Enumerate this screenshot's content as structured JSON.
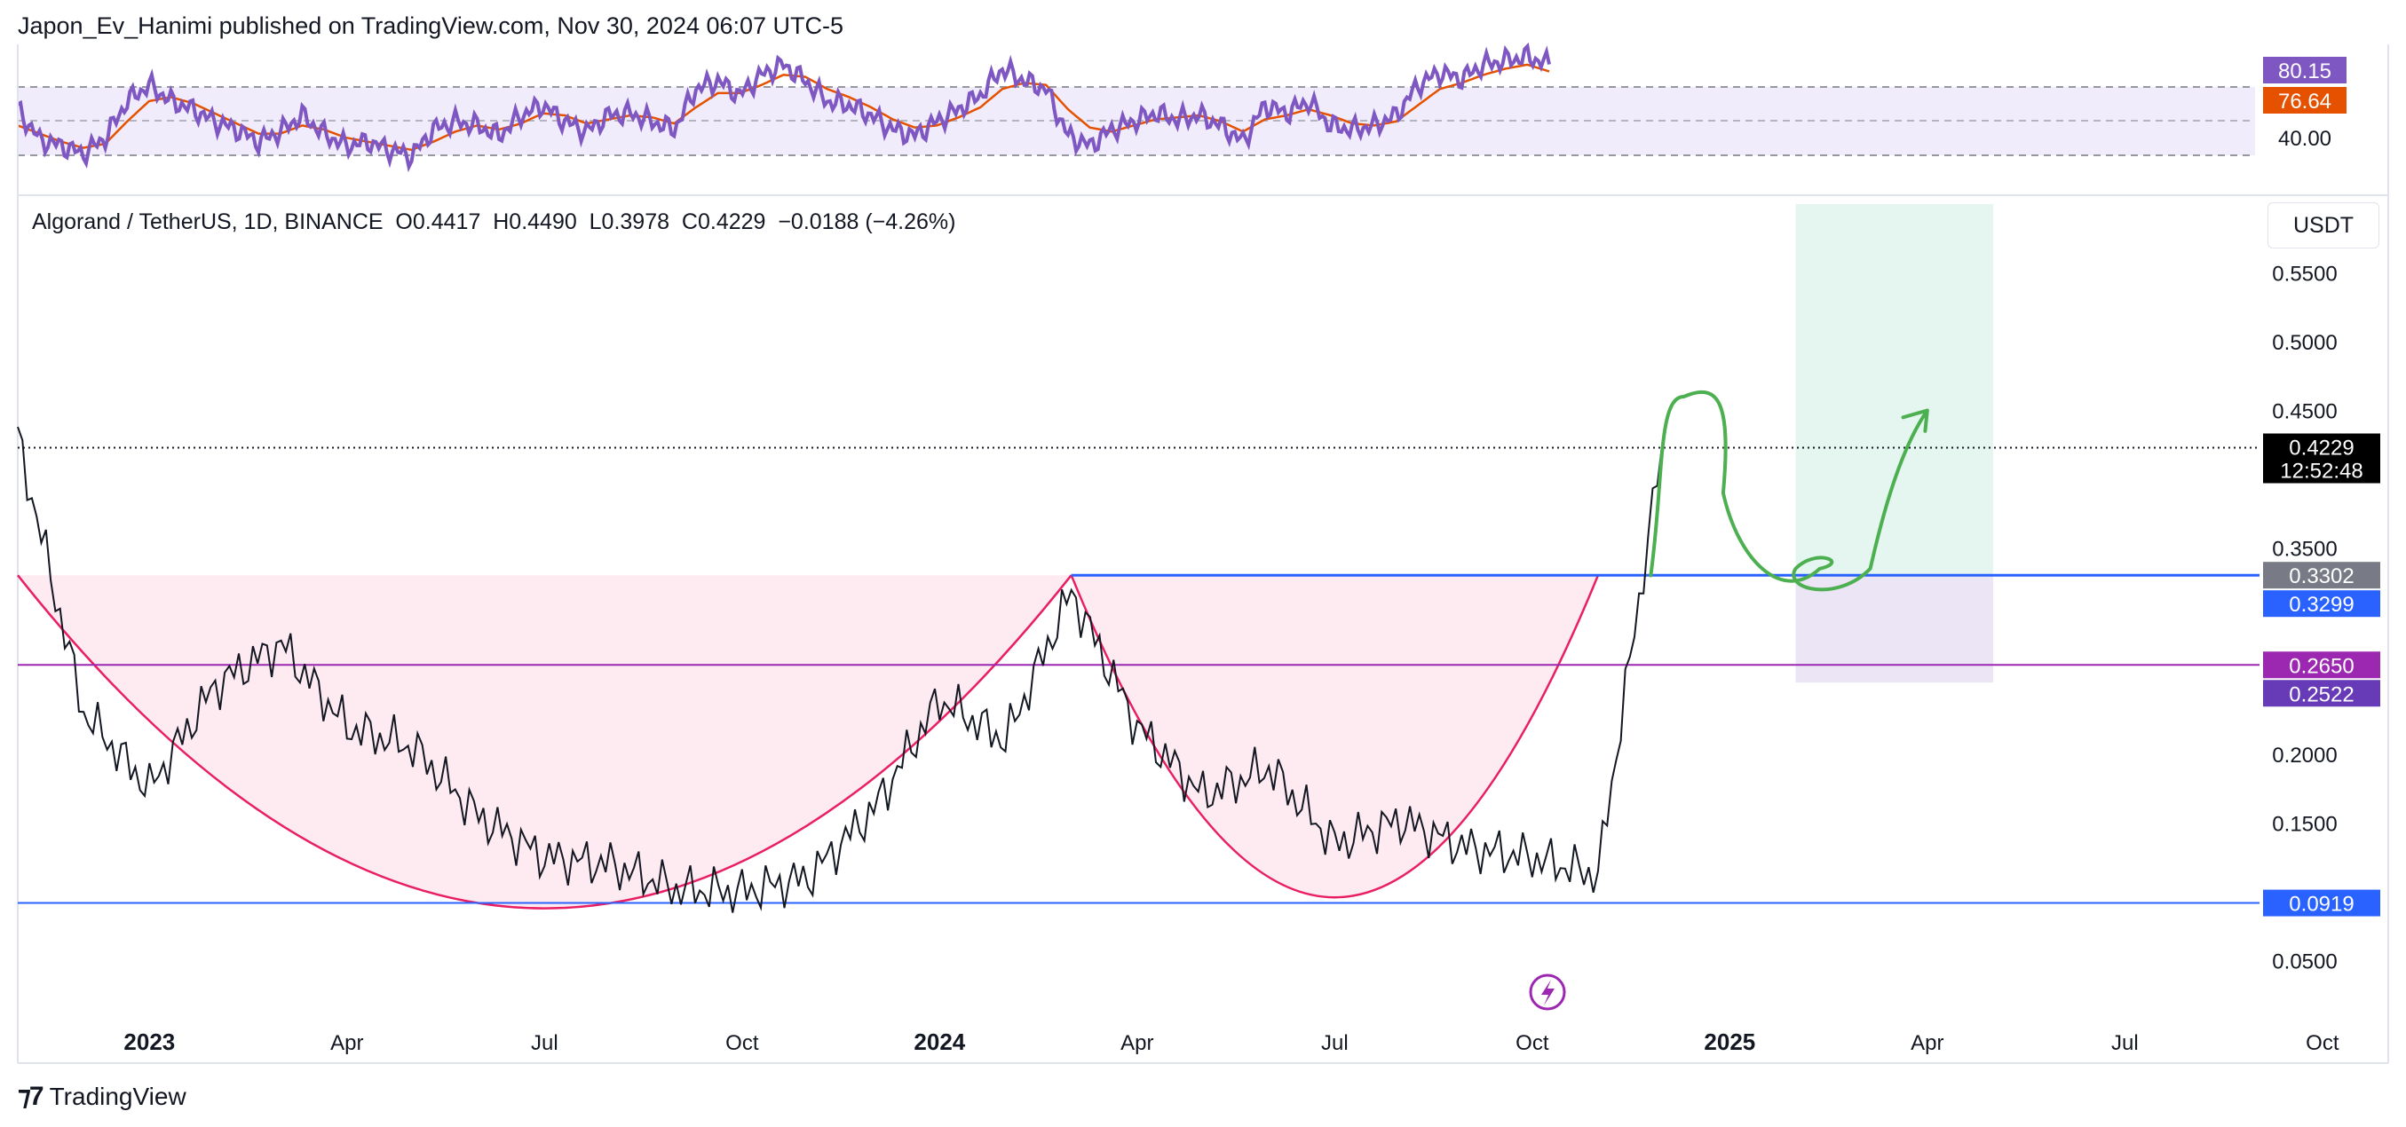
{
  "publisher": "Japon_Ev_Hanimi published on TradingView.com, Nov 30, 2024 06:07 UTC-5",
  "symbol_info": "Algorand / TetherUS, 1D, BINANCE  O0.4417  H0.4490  L0.3978  C0.4229  −0.0188 (−4.26%)",
  "currency_button": "USDT",
  "footer_brand": "TradingView",
  "chart_data": [
    {
      "type": "line",
      "title": "",
      "series": [
        {
          "name": "",
          "color": "#7e57c2",
          "values": [
            58,
            43,
            40,
            36,
            44,
            62,
            70,
            62,
            58,
            52,
            48,
            42,
            47,
            55,
            46,
            40,
            42,
            38,
            35,
            48,
            52,
            50,
            45,
            55,
            60,
            52,
            47,
            55,
            56,
            52,
            48,
            68,
            72,
            65,
            75,
            80,
            72,
            62,
            60,
            55,
            48,
            45,
            52,
            58,
            65,
            78,
            72,
            68,
            45,
            40,
            48,
            52,
            56,
            53,
            55,
            50,
            42,
            60,
            56,
            62,
            50,
            48,
            50,
            55,
            70,
            76,
            73,
            80,
            82,
            84,
            80.15
          ]
        },
        {
          "name": "",
          "color": "#e65100",
          "values": [
            50,
            46,
            42,
            39,
            41,
            52,
            62,
            64,
            61,
            56,
            51,
            46,
            46,
            50,
            48,
            44,
            42,
            40,
            38,
            42,
            47,
            50,
            48,
            51,
            56,
            55,
            51,
            53,
            55,
            54,
            51,
            59,
            66,
            66,
            70,
            75,
            74,
            68,
            64,
            59,
            53,
            49,
            50,
            54,
            59,
            68,
            71,
            70,
            58,
            49,
            47,
            50,
            53,
            54,
            55,
            52,
            47,
            53,
            55,
            58,
            55,
            51,
            50,
            52,
            60,
            68,
            71,
            75,
            78,
            80,
            76.64
          ]
        }
      ],
      "levels": [
        80,
        60,
        40
      ],
      "tick_labels": [
        "40.00"
      ],
      "last_values": {
        "rsi": "80.15",
        "ma": "76.64"
      },
      "ylim": [
        20,
        90
      ]
    },
    {
      "type": "line",
      "title": "",
      "x": [
        "2022-11",
        "2022-12",
        "2023-01",
        "2023-02",
        "2023-03",
        "2023-04",
        "2023-05",
        "2023-06",
        "2023-07",
        "2023-08",
        "2023-09",
        "2023-10",
        "2023-11",
        "2023-12",
        "2024-01",
        "2024-02",
        "2024-03",
        "2024-04",
        "2024-05",
        "2024-06",
        "2024-07",
        "2024-08",
        "2024-09",
        "2024-10",
        "2024-11",
        "2024-11-30"
      ],
      "series": [
        {
          "name": "",
          "color": "#131722",
          "values": [
            0.43,
            0.23,
            0.175,
            0.25,
            0.28,
            0.22,
            0.205,
            0.155,
            0.125,
            0.12,
            0.102,
            0.1,
            0.11,
            0.16,
            0.24,
            0.21,
            0.318,
            0.22,
            0.17,
            0.19,
            0.135,
            0.152,
            0.132,
            0.125,
            0.112,
            0.4229
          ]
        }
      ],
      "xlim": [
        "2022-11",
        "2025-11"
      ],
      "ylim": [
        0.0,
        0.6
      ],
      "y_ticks": [
        "0.5500",
        "0.5000",
        "0.4500",
        "0.3500",
        "0.2000",
        "0.1500",
        "0.0500"
      ],
      "x_ticks": [
        {
          "label": "2023",
          "date": "2023-01",
          "bold": true
        },
        {
          "label": "Apr",
          "date": "2023-04"
        },
        {
          "label": "Jul",
          "date": "2023-07"
        },
        {
          "label": "Oct",
          "date": "2023-10"
        },
        {
          "label": "2024",
          "date": "2024-01",
          "bold": true
        },
        {
          "label": "Apr",
          "date": "2024-04"
        },
        {
          "label": "Jul",
          "date": "2024-07"
        },
        {
          "label": "Oct",
          "date": "2024-10"
        },
        {
          "label": "2025",
          "date": "2025-01",
          "bold": true
        },
        {
          "label": "Apr",
          "date": "2025-04"
        },
        {
          "label": "Jul",
          "date": "2025-07"
        },
        {
          "label": "Oct",
          "date": "2025-10"
        }
      ],
      "price_tags": [
        {
          "label": "0.4229",
          "value": 0.4229,
          "color": "#000000",
          "sub": "12:52:48"
        },
        {
          "label": "0.3302",
          "value": 0.3302,
          "color": "#787b86"
        },
        {
          "label": "0.3299",
          "value": 0.3299,
          "color": "#2962ff"
        },
        {
          "label": "0.2650",
          "value": 0.265,
          "color": "#9c27b0"
        },
        {
          "label": "0.2522",
          "value": 0.2522,
          "color": "#673ab7"
        },
        {
          "label": "0.0919",
          "value": 0.0919,
          "color": "#2962ff"
        }
      ],
      "horizontal_lines": [
        {
          "value": 0.3302,
          "color": "#2962ff",
          "from": "2024-03"
        },
        {
          "value": 0.265,
          "color": "#9c27b0"
        },
        {
          "value": 0.0919,
          "color": "#2962ff"
        },
        {
          "value": 0.4229,
          "color": "#131722",
          "dotted": true
        }
      ],
      "cup_curves": [
        {
          "from": "2022-11",
          "to": "2024-03",
          "top": 0.3302,
          "bottom": 0.088
        },
        {
          "from": "2024-03",
          "to": "2024-11",
          "top": 0.3302,
          "bottom": 0.096
        }
      ],
      "position_box": {
        "from": "2025-02",
        "to": "2025-05",
        "entry": 0.3302,
        "target": 0.6,
        "stop": 0.2522,
        "profit_color": "#e5f6f0",
        "loss_color": "#ebe5f6"
      },
      "projection_color": "#4caf50"
    }
  ]
}
